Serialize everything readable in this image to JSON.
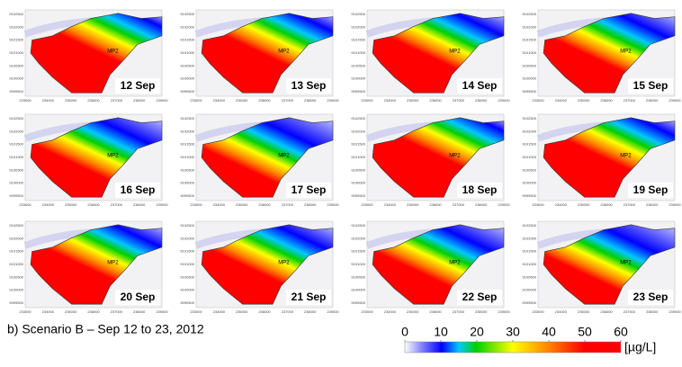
{
  "panels": [
    {
      "date": "12 Sep",
      "station": "MP2"
    },
    {
      "date": "13 Sep",
      "station": "MP2"
    },
    {
      "date": "14 Sep",
      "station": "MP2"
    },
    {
      "date": "15 Sep",
      "station": "MP2"
    },
    {
      "date": "16 Sep",
      "station": "MP2"
    },
    {
      "date": "17 Sep",
      "station": "MP2"
    },
    {
      "date": "18 Sep",
      "station": "MP2"
    },
    {
      "date": "19 Sep",
      "station": "MP2"
    },
    {
      "date": "20 Sep",
      "station": "MP2"
    },
    {
      "date": "21 Sep",
      "station": "MP2"
    },
    {
      "date": "22 Sep",
      "station": "MP2"
    },
    {
      "date": "23 Sep",
      "station": "MP2"
    }
  ],
  "yticks": [
    "9102500",
    "9102000",
    "9101500",
    "9101000",
    "9100500",
    "9100000",
    "9099500"
  ],
  "xticks": [
    "233000",
    "234000",
    "235000",
    "236000",
    "237000",
    "238000",
    "239000"
  ],
  "caption": "b)  Scenario B – Sep 12 to 23, 2012",
  "colorbar": {
    "lim": [
      0,
      60
    ],
    "ticks": [
      0,
      10,
      20,
      30,
      40,
      50,
      60
    ],
    "unit": "[µg/L]"
  }
}
